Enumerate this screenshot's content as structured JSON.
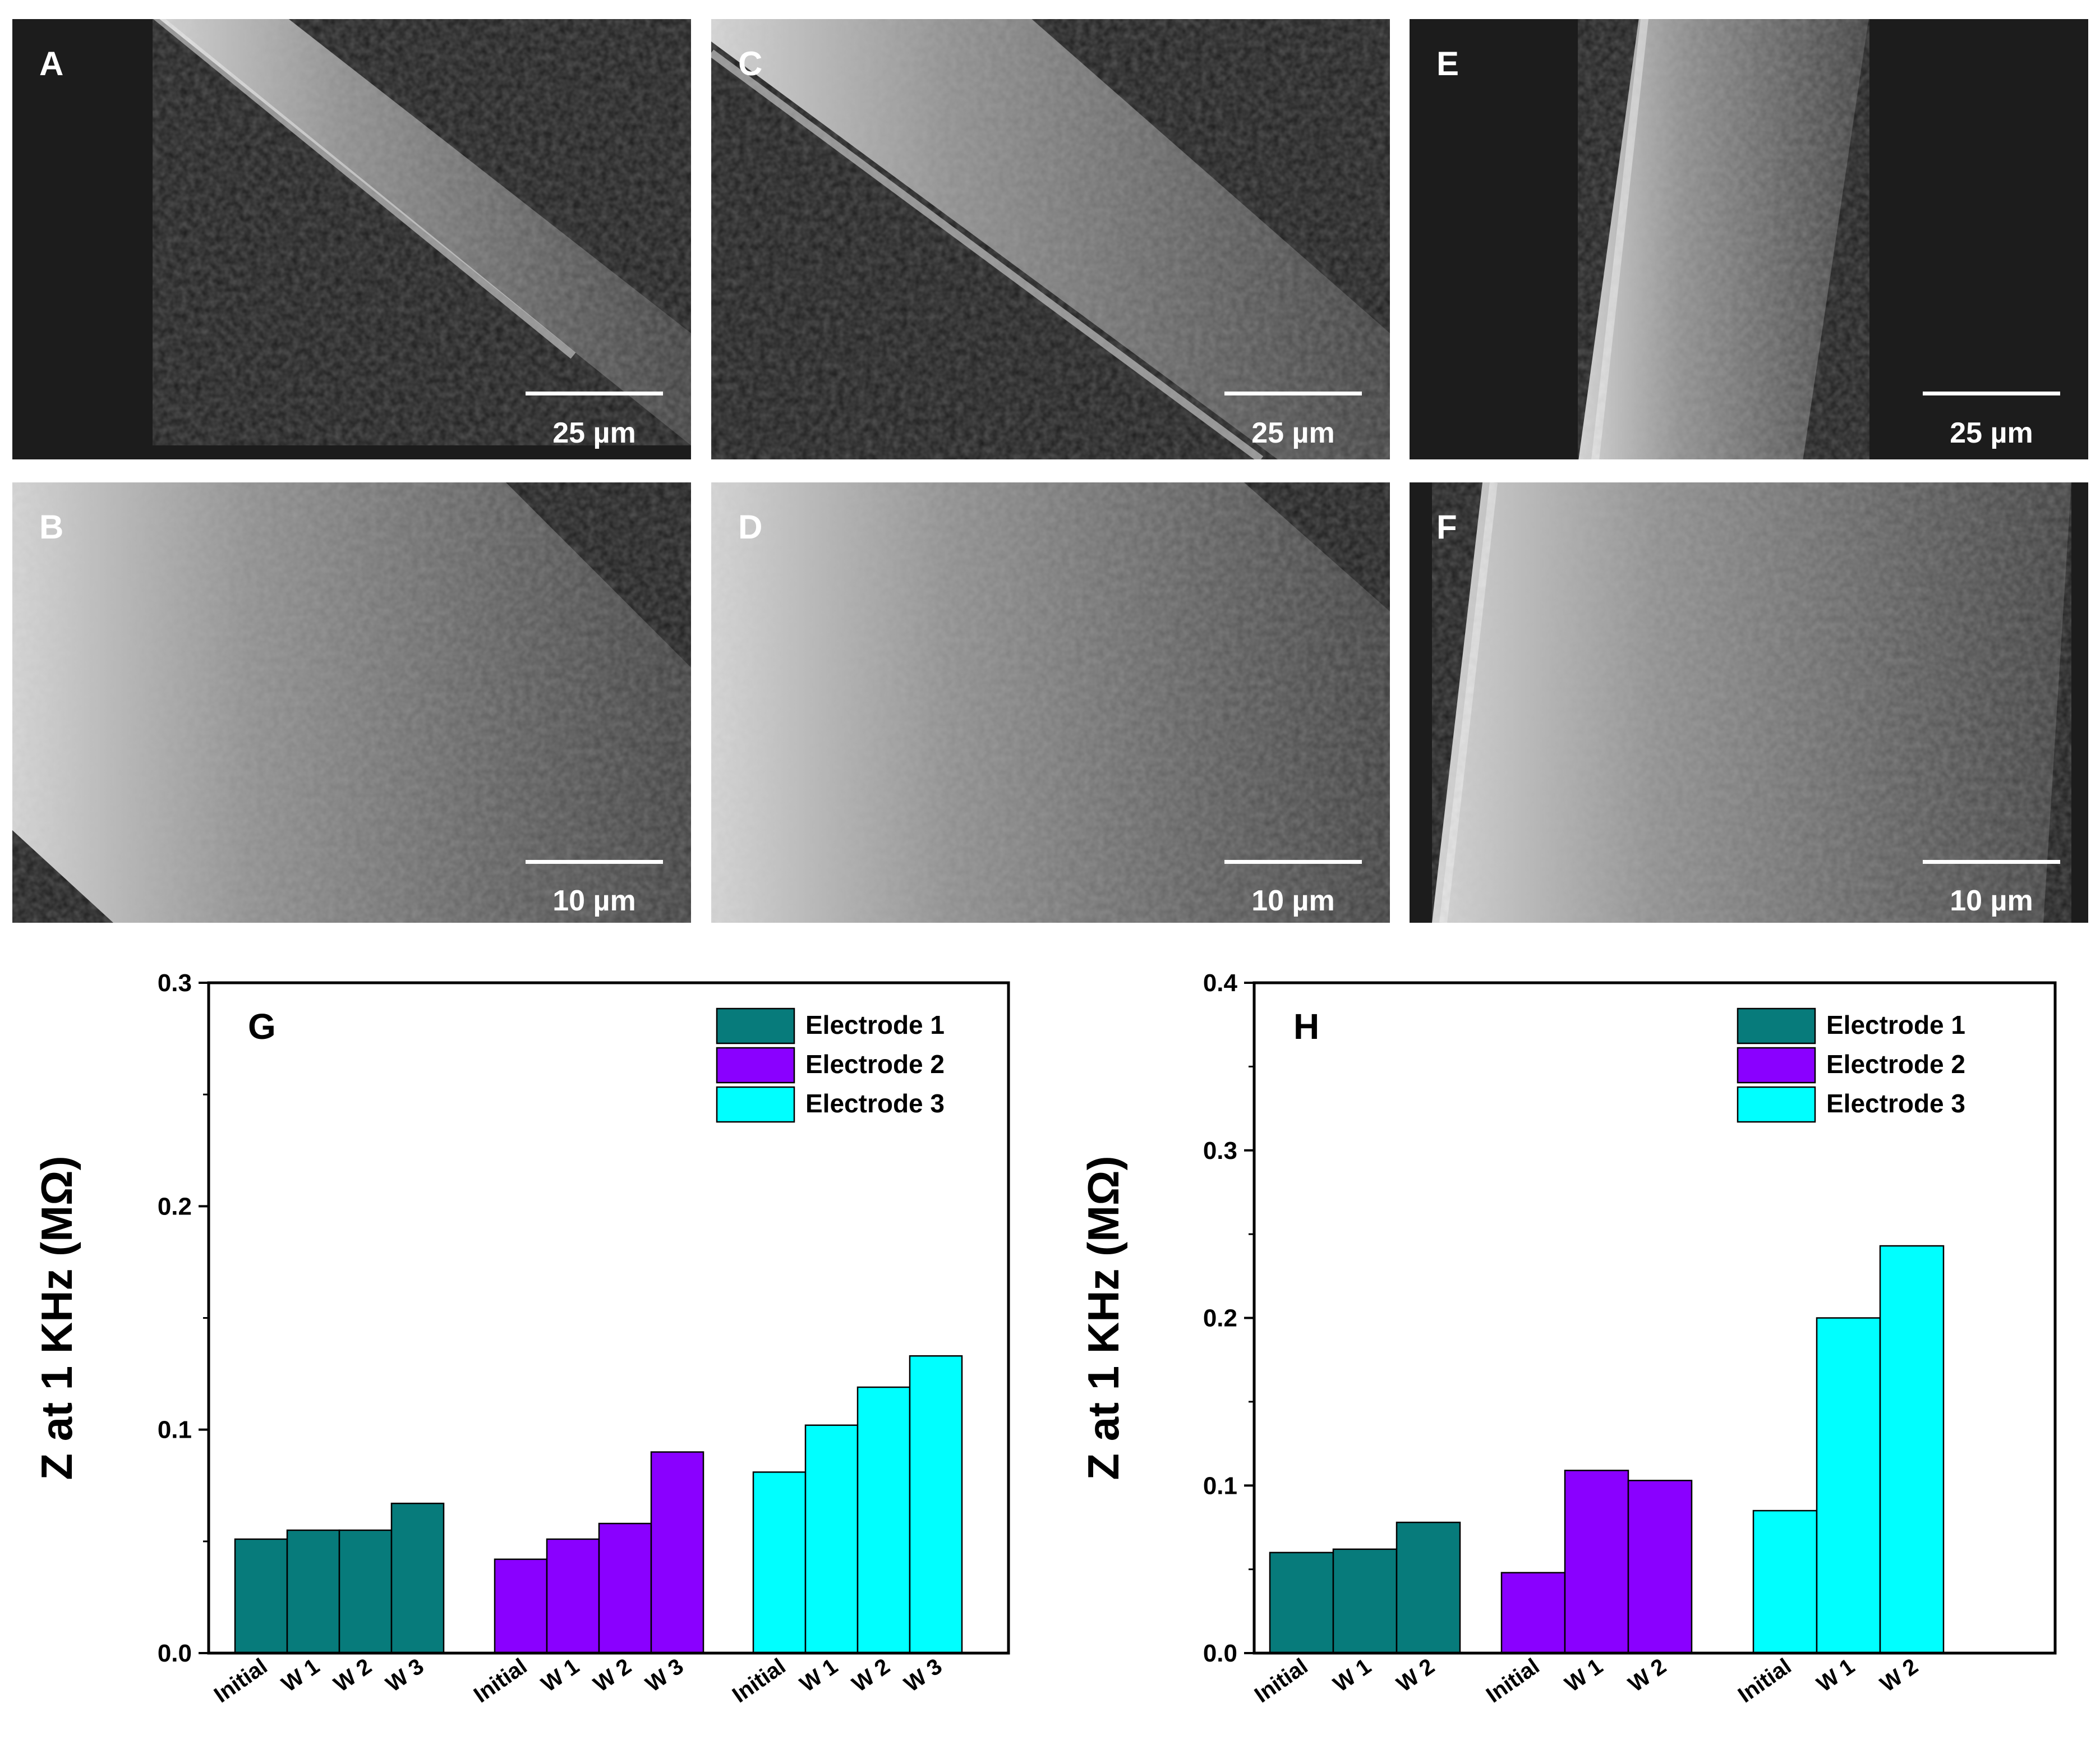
{
  "sem_panels": [
    {
      "id": "A",
      "scale_label": "25 µm"
    },
    {
      "id": "C",
      "scale_label": "25 µm"
    },
    {
      "id": "E",
      "scale_label": "25 µm"
    },
    {
      "id": "B",
      "scale_label": "10 µm"
    },
    {
      "id": "D",
      "scale_label": "10 µm"
    },
    {
      "id": "F",
      "scale_label": "10 µm"
    }
  ],
  "colors": {
    "electrode_1": "#077b7b",
    "electrode_2": "#8a00ff",
    "electrode_3": "#00ffff",
    "axis": "#000000"
  },
  "chart_data": [
    {
      "panel": "G",
      "type": "bar",
      "ylabel": "Z at 1 KHz (MΩ)",
      "ylim": [
        0,
        0.3
      ],
      "yticks": [
        "0.0",
        "0.1",
        "0.2",
        "0.3"
      ],
      "legend_position": "top-right",
      "groups": [
        {
          "series": "Electrode 1",
          "categories": [
            "Initial",
            "W 1",
            "W 2",
            "W 3"
          ],
          "values": [
            0.051,
            0.055,
            0.055,
            0.067
          ]
        },
        {
          "series": "Electrode 2",
          "categories": [
            "Initial",
            "W 1",
            "W 2",
            "W 3"
          ],
          "values": [
            0.042,
            0.051,
            0.058,
            0.09
          ]
        },
        {
          "series": "Electrode 3",
          "categories": [
            "Initial",
            "W 1",
            "W 2",
            "W 3"
          ],
          "values": [
            0.081,
            0.102,
            0.119,
            0.133
          ]
        }
      ]
    },
    {
      "panel": "H",
      "type": "bar",
      "ylabel": "Z at 1 KHz (MΩ)",
      "ylim": [
        0,
        0.4
      ],
      "yticks": [
        "0.0",
        "0.1",
        "0.2",
        "0.3",
        "0.4"
      ],
      "legend_position": "top-right",
      "groups": [
        {
          "series": "Electrode 1",
          "categories": [
            "Initial",
            "W 1",
            "W 2"
          ],
          "values": [
            0.06,
            0.062,
            0.078
          ]
        },
        {
          "series": "Electrode 2",
          "categories": [
            "Initial",
            "W 1",
            "W 2"
          ],
          "values": [
            0.048,
            0.109,
            0.103
          ]
        },
        {
          "series": "Electrode 3",
          "categories": [
            "Initial",
            "W 1",
            "W 2"
          ],
          "values": [
            0.085,
            0.2,
            0.243
          ]
        }
      ]
    }
  ]
}
